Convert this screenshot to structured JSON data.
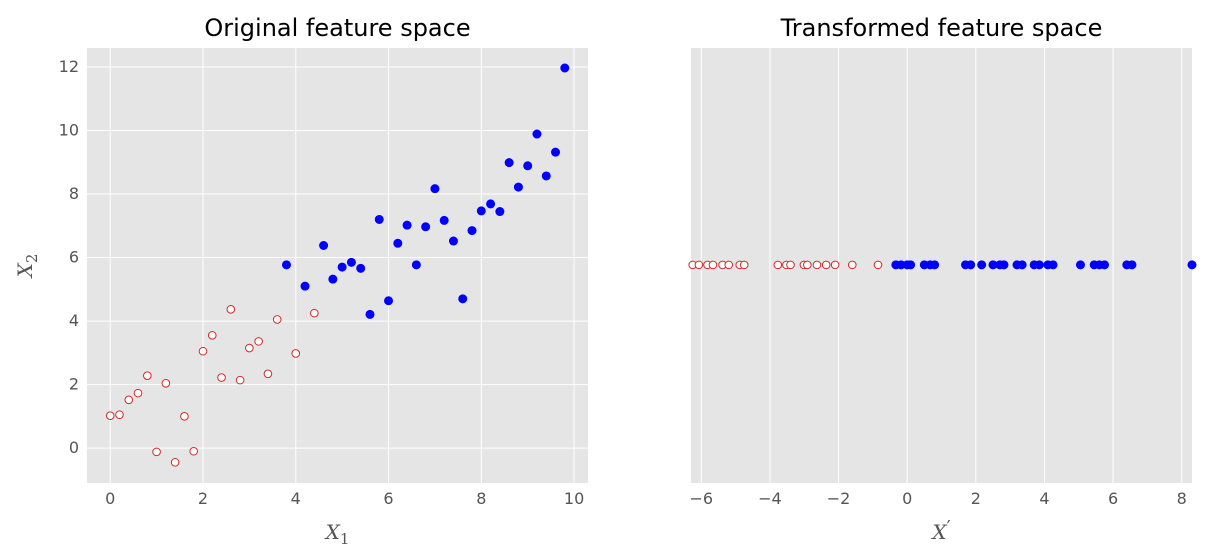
{
  "colors": {
    "background": "#e5e5e5",
    "grid": "#ffffff",
    "class_a_edge": "#d62728",
    "class_a_face": "#ffffff",
    "class_b": "#0000ff",
    "text": "#555555"
  },
  "chart_data": [
    {
      "type": "scatter",
      "title": "Original feature space",
      "xlabel_base": "X",
      "xlabel_sub": "1",
      "ylabel_base": "X",
      "ylabel_sub": "2",
      "xlim": [
        -0.5,
        10.3
      ],
      "ylim": [
        -1.1,
        12.6
      ],
      "xticks": [
        0,
        2,
        4,
        6,
        8,
        10
      ],
      "yticks": [
        0,
        2,
        4,
        6,
        8,
        10,
        12
      ],
      "grid": true,
      "series": [
        {
          "marker": "open-circle",
          "color_key": "class_a_edge",
          "points": [
            [
              0.0,
              1.02
            ],
            [
              0.2,
              1.05
            ],
            [
              0.4,
              1.52
            ],
            [
              0.6,
              1.73
            ],
            [
              0.8,
              2.28
            ],
            [
              1.0,
              -0.12
            ],
            [
              1.2,
              2.04
            ],
            [
              1.4,
              -0.45
            ],
            [
              1.6,
              1.0
            ],
            [
              1.8,
              -0.1
            ],
            [
              2.0,
              3.05
            ],
            [
              2.2,
              3.55
            ],
            [
              2.4,
              2.22
            ],
            [
              2.6,
              4.37
            ],
            [
              2.8,
              2.14
            ],
            [
              3.0,
              3.15
            ],
            [
              3.2,
              3.36
            ],
            [
              3.4,
              2.34
            ],
            [
              3.6,
              4.05
            ],
            [
              4.0,
              2.98
            ],
            [
              4.4,
              4.25
            ]
          ]
        },
        {
          "marker": "filled-circle",
          "color_key": "class_b",
          "points": [
            [
              3.8,
              5.77
            ],
            [
              4.2,
              5.1
            ],
            [
              4.6,
              6.38
            ],
            [
              4.8,
              5.32
            ],
            [
              5.0,
              5.7
            ],
            [
              5.2,
              5.85
            ],
            [
              5.4,
              5.66
            ],
            [
              5.6,
              4.21
            ],
            [
              5.8,
              7.2
            ],
            [
              6.0,
              4.64
            ],
            [
              6.2,
              6.45
            ],
            [
              6.4,
              7.02
            ],
            [
              6.6,
              5.77
            ],
            [
              6.8,
              6.97
            ],
            [
              7.0,
              8.17
            ],
            [
              7.2,
              7.17
            ],
            [
              7.4,
              6.52
            ],
            [
              7.6,
              4.7
            ],
            [
              7.8,
              6.85
            ],
            [
              8.0,
              7.47
            ],
            [
              8.2,
              7.69
            ],
            [
              8.4,
              7.45
            ],
            [
              8.6,
              8.99
            ],
            [
              8.8,
              8.22
            ],
            [
              9.0,
              8.89
            ],
            [
              9.2,
              9.89
            ],
            [
              9.4,
              8.57
            ],
            [
              9.6,
              9.32
            ],
            [
              9.8,
              11.97
            ]
          ]
        }
      ]
    },
    {
      "type": "scatter",
      "title": "Transformed feature space",
      "xlabel_base": "X",
      "xlabel_sub": "′",
      "xlim": [
        -6.3,
        8.3
      ],
      "ylim": [
        -1.1,
        12.6
      ],
      "xticks": [
        -6,
        -4,
        -2,
        0,
        2,
        4,
        6,
        8
      ],
      "xtick_labels": [
        "−6",
        "−4",
        "−2",
        "0",
        "2",
        "4",
        "6",
        "8"
      ],
      "grid": true,
      "y_constant": 5.77,
      "series": [
        {
          "marker": "open-circle",
          "color_key": "class_a_edge",
          "x": [
            -6.25,
            -6.07,
            -5.82,
            -5.66,
            -5.38,
            -5.2,
            -4.88,
            -4.75,
            -3.77,
            -3.52,
            -3.4,
            -3.01,
            -2.91,
            -2.63,
            -2.36,
            -2.1,
            -1.6,
            -0.85
          ]
        },
        {
          "marker": "filled-circle",
          "color_key": "class_b",
          "x": [
            -0.33,
            -0.18,
            0.0,
            0.1,
            0.5,
            0.67,
            0.8,
            1.7,
            1.85,
            2.17,
            2.5,
            2.7,
            2.82,
            3.2,
            3.35,
            3.7,
            3.85,
            4.1,
            4.25,
            5.05,
            5.45,
            5.6,
            5.75,
            6.4,
            6.55,
            8.3
          ]
        }
      ]
    }
  ]
}
